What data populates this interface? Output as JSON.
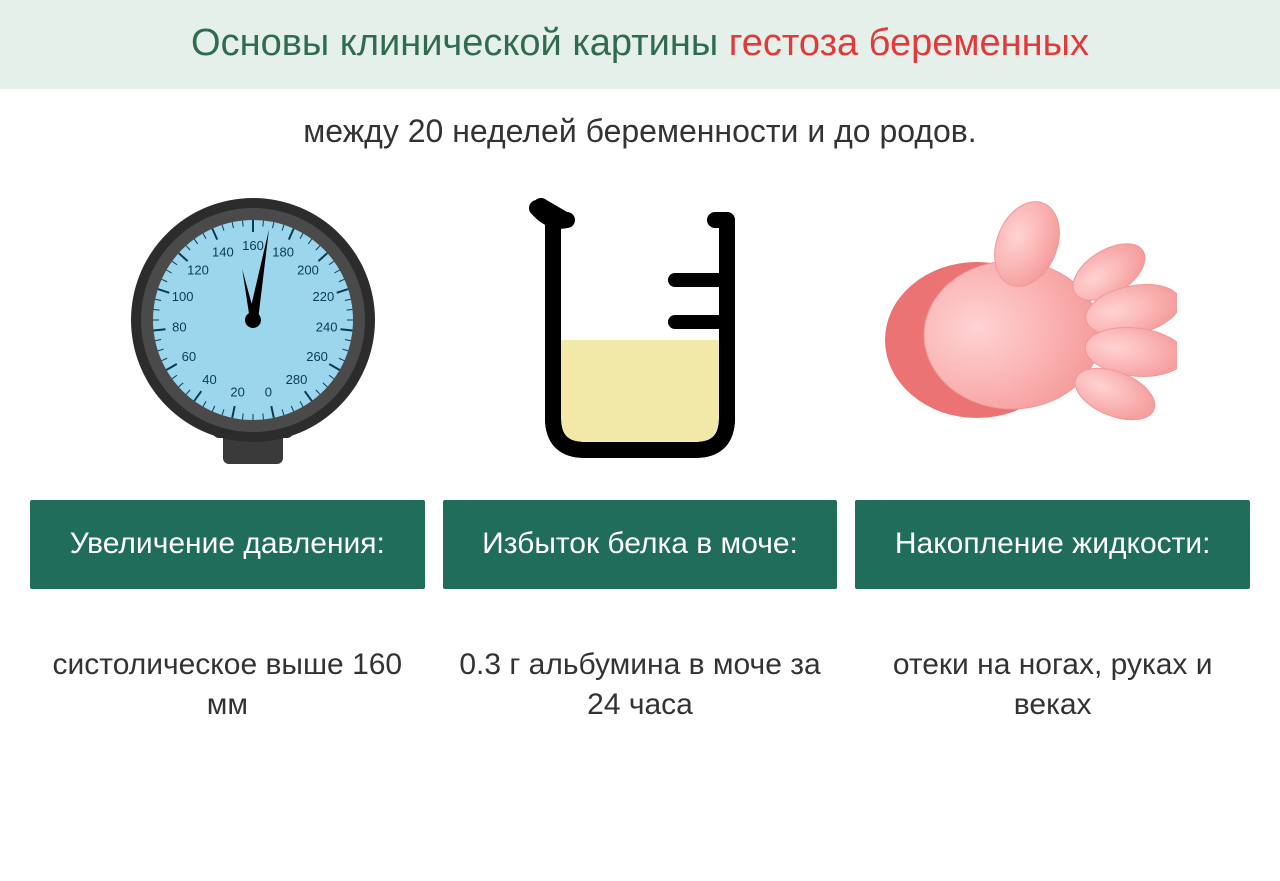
{
  "colors": {
    "title_band_bg": "#e6f0ea",
    "title_text": "#2f6b4f",
    "title_accent": "#e23a3a",
    "subtitle_text": "#333333",
    "header_bg": "#1f6d5a",
    "header_text": "#ffffff",
    "desc_text": "#333333",
    "gauge_face": "#9cd6ed",
    "gauge_rim_outer": "#2c2c2c",
    "gauge_rim_inner": "#4a4a4a",
    "gauge_text": "#0a3a53",
    "beaker_stroke": "#000000",
    "beaker_fill": "#f2e8a8",
    "hand_fill": "#fbb5b5",
    "hand_shadow": "#e85a5a"
  },
  "title": {
    "prefix": "Основы клинической картины ",
    "accent": "гестоза беременных"
  },
  "subtitle": "между 20 неделей беременности и до родов.",
  "columns": [
    {
      "header": "Увеличение давления:",
      "desc": "систолическое выше 160 мм"
    },
    {
      "header": "Избыток белка в моче:",
      "desc": "0.3 г альбумина в моче за 24 часа"
    },
    {
      "header": "Накопление жидкости:",
      "desc": "отеки на ногах, руках и веках"
    }
  ],
  "gauge": {
    "ticks": [
      "160",
      "180",
      "200",
      "220",
      "240",
      "260",
      "280",
      "0",
      "20",
      "40",
      "60",
      "80",
      "100",
      "120",
      "140"
    ]
  }
}
